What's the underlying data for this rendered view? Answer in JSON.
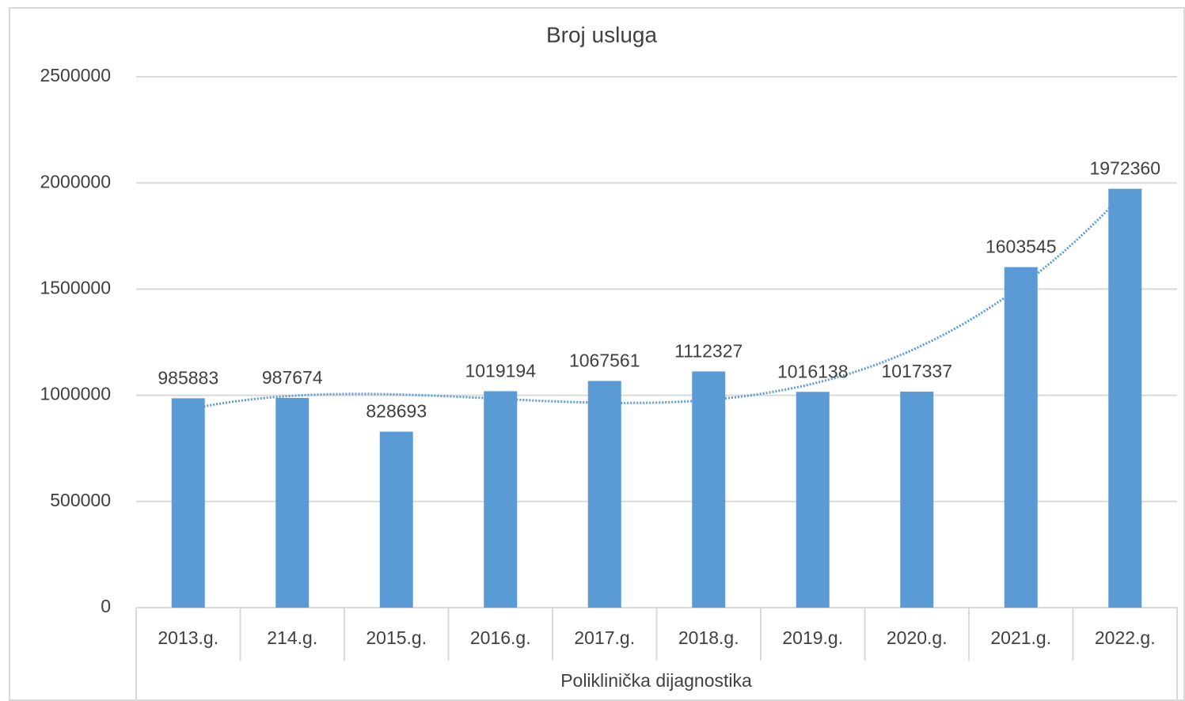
{
  "chart_data": {
    "type": "bar",
    "title": "Broj usluga",
    "x_label": "Poliklinička dijagnostika",
    "categories": [
      "2013.g.",
      "214.g.",
      "2015.g.",
      "2016.g.",
      "2017.g.",
      "2018.g.",
      "2019.g.",
      "2020.g.",
      "2021.g.",
      "2022.g."
    ],
    "values": [
      985883,
      987674,
      828693,
      1019194,
      1067561,
      1112327,
      1016138,
      1017337,
      1603545,
      1972360
    ],
    "color": "#5b9bd5",
    "ylim": [
      0,
      2500000
    ],
    "yticks": [
      0,
      500000,
      1000000,
      1500000,
      2000000,
      2500000
    ],
    "grid": true,
    "trendline": {
      "type": "polynomial",
      "order": 3,
      "color": "#5b9bd5"
    }
  }
}
